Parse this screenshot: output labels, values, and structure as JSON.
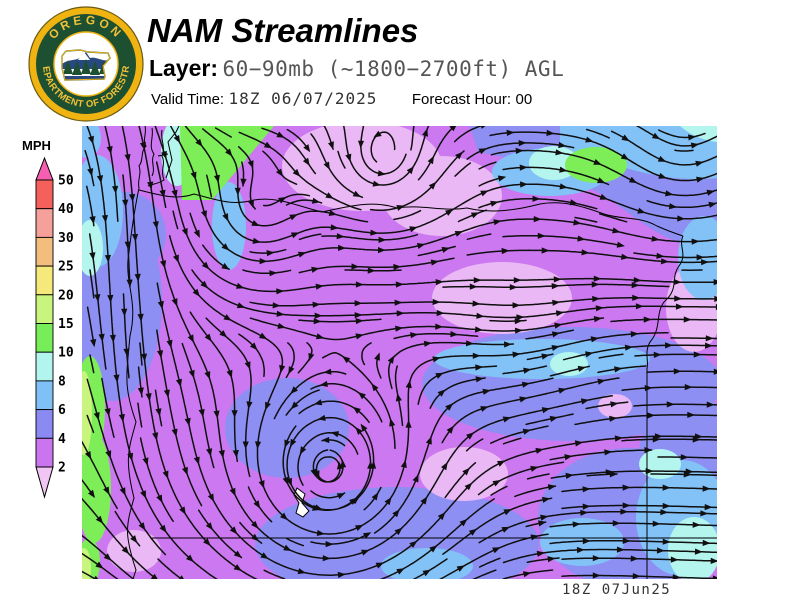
{
  "header": {
    "title": "NAM Streamlines",
    "layer_label": "Layer:",
    "layer_value": "60−90mb (~1800−2700ft) AGL",
    "valid_time_label": "Valid Time:",
    "valid_time_value": "18Z 06/07/2025",
    "forecast_hour_label": "Forecast Hour:",
    "forecast_hour_value": "00"
  },
  "logo": {
    "ring_text_top": "OREGON",
    "ring_text_bottom": "DEPARTMENT OF FORESTRY",
    "gold": "#efb312",
    "green": "#1d4f31",
    "navy": "#27497f"
  },
  "legend": {
    "unit_label": "MPH",
    "boundaries": [
      "50",
      "40",
      "30",
      "25",
      "20",
      "15",
      "10",
      "8",
      "6",
      "4",
      "2"
    ],
    "segment_colors": [
      "#f4615c",
      "#f5a09b",
      "#f3bd7d",
      "#f5e97c",
      "#c9f57e",
      "#77ed5a",
      "#b2f4ee",
      "#7fc0f6",
      "#8a8af2",
      "#ca74f0"
    ],
    "above_max_color": "#f65fb1",
    "below_min_color": "#f2c6f4"
  },
  "map": {
    "timestamp": "18Z 07Jun25",
    "palette": {
      "under_2": "#eab8f4",
      "2_4": "#cc78f0",
      "4_6": "#8d8ff3",
      "6_8": "#82c2f7",
      "8_10": "#b4f5ee",
      "10_15": "#7ded58",
      "15_20": "#c9f57e"
    }
  },
  "chart_data": {
    "type": "heatmap",
    "title": "NAM Streamlines",
    "layer": "60−90mb (~1800−2700ft) AGL",
    "valid_time": "18Z 06/07/2025",
    "forecast_hour": "00",
    "units": "MPH",
    "colorbar": {
      "boundaries_high_to_low": [
        50,
        40,
        30,
        25,
        20,
        15,
        10,
        8,
        6,
        4,
        2
      ],
      "segment_colors_high_to_low": [
        "#f4615c",
        "#f5a09b",
        "#f3bd7d",
        "#f5e97c",
        "#c9f57e",
        "#77ed5a",
        "#b2f4ee",
        "#7fc0f6",
        "#8a8af2",
        "#ca74f0"
      ],
      "above_max_color": "#f65fb1",
      "below_min_color": "#f2c6f4"
    },
    "field_summary": "Wind speed field over Oregon and surroundings: mostly 2-4 MPH (orchid) with sub-2 MPH pale patches in the interior; 4-8 MPH (blue) bands in the northeast, east-central and southern areas; 8-15 MPH (cyan/green) along the coast, the northwest corner and a small pocket in the north-central region. Black streamlines flow generally west to east with cyclonic eddies over the northwest interior and south-central area.",
    "map_timestamp": "18Z 07Jun25"
  }
}
